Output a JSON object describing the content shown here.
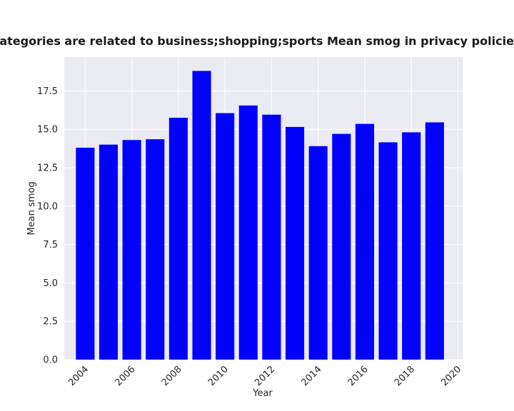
{
  "chart_data": {
    "type": "bar",
    "title": "when categories are related to business;shopping;sports Mean smog in privacy policies by Year",
    "xlabel": "Year",
    "ylabel": "Mean smog",
    "x": [
      2004,
      2005,
      2006,
      2007,
      2008,
      2009,
      2010,
      2011,
      2012,
      2013,
      2014,
      2015,
      2016,
      2017,
      2018,
      2019
    ],
    "values": [
      13.8,
      14.0,
      14.3,
      14.35,
      15.75,
      18.8,
      16.05,
      16.55,
      15.95,
      15.15,
      13.9,
      14.7,
      15.35,
      14.15,
      14.8,
      15.45
    ],
    "xlim": [
      2003.1,
      2020.2
    ],
    "ylim": [
      0,
      19.7
    ],
    "xticks": [
      "2004",
      "2006",
      "2008",
      "2010",
      "2012",
      "2014",
      "2016",
      "2018",
      "2020"
    ],
    "yticks": [
      "0.0",
      "2.5",
      "5.0",
      "7.5",
      "10.0",
      "12.5",
      "15.0",
      "17.5"
    ],
    "bar_color": "#0000ff",
    "background": "#eaeaf2",
    "grid": true
  }
}
